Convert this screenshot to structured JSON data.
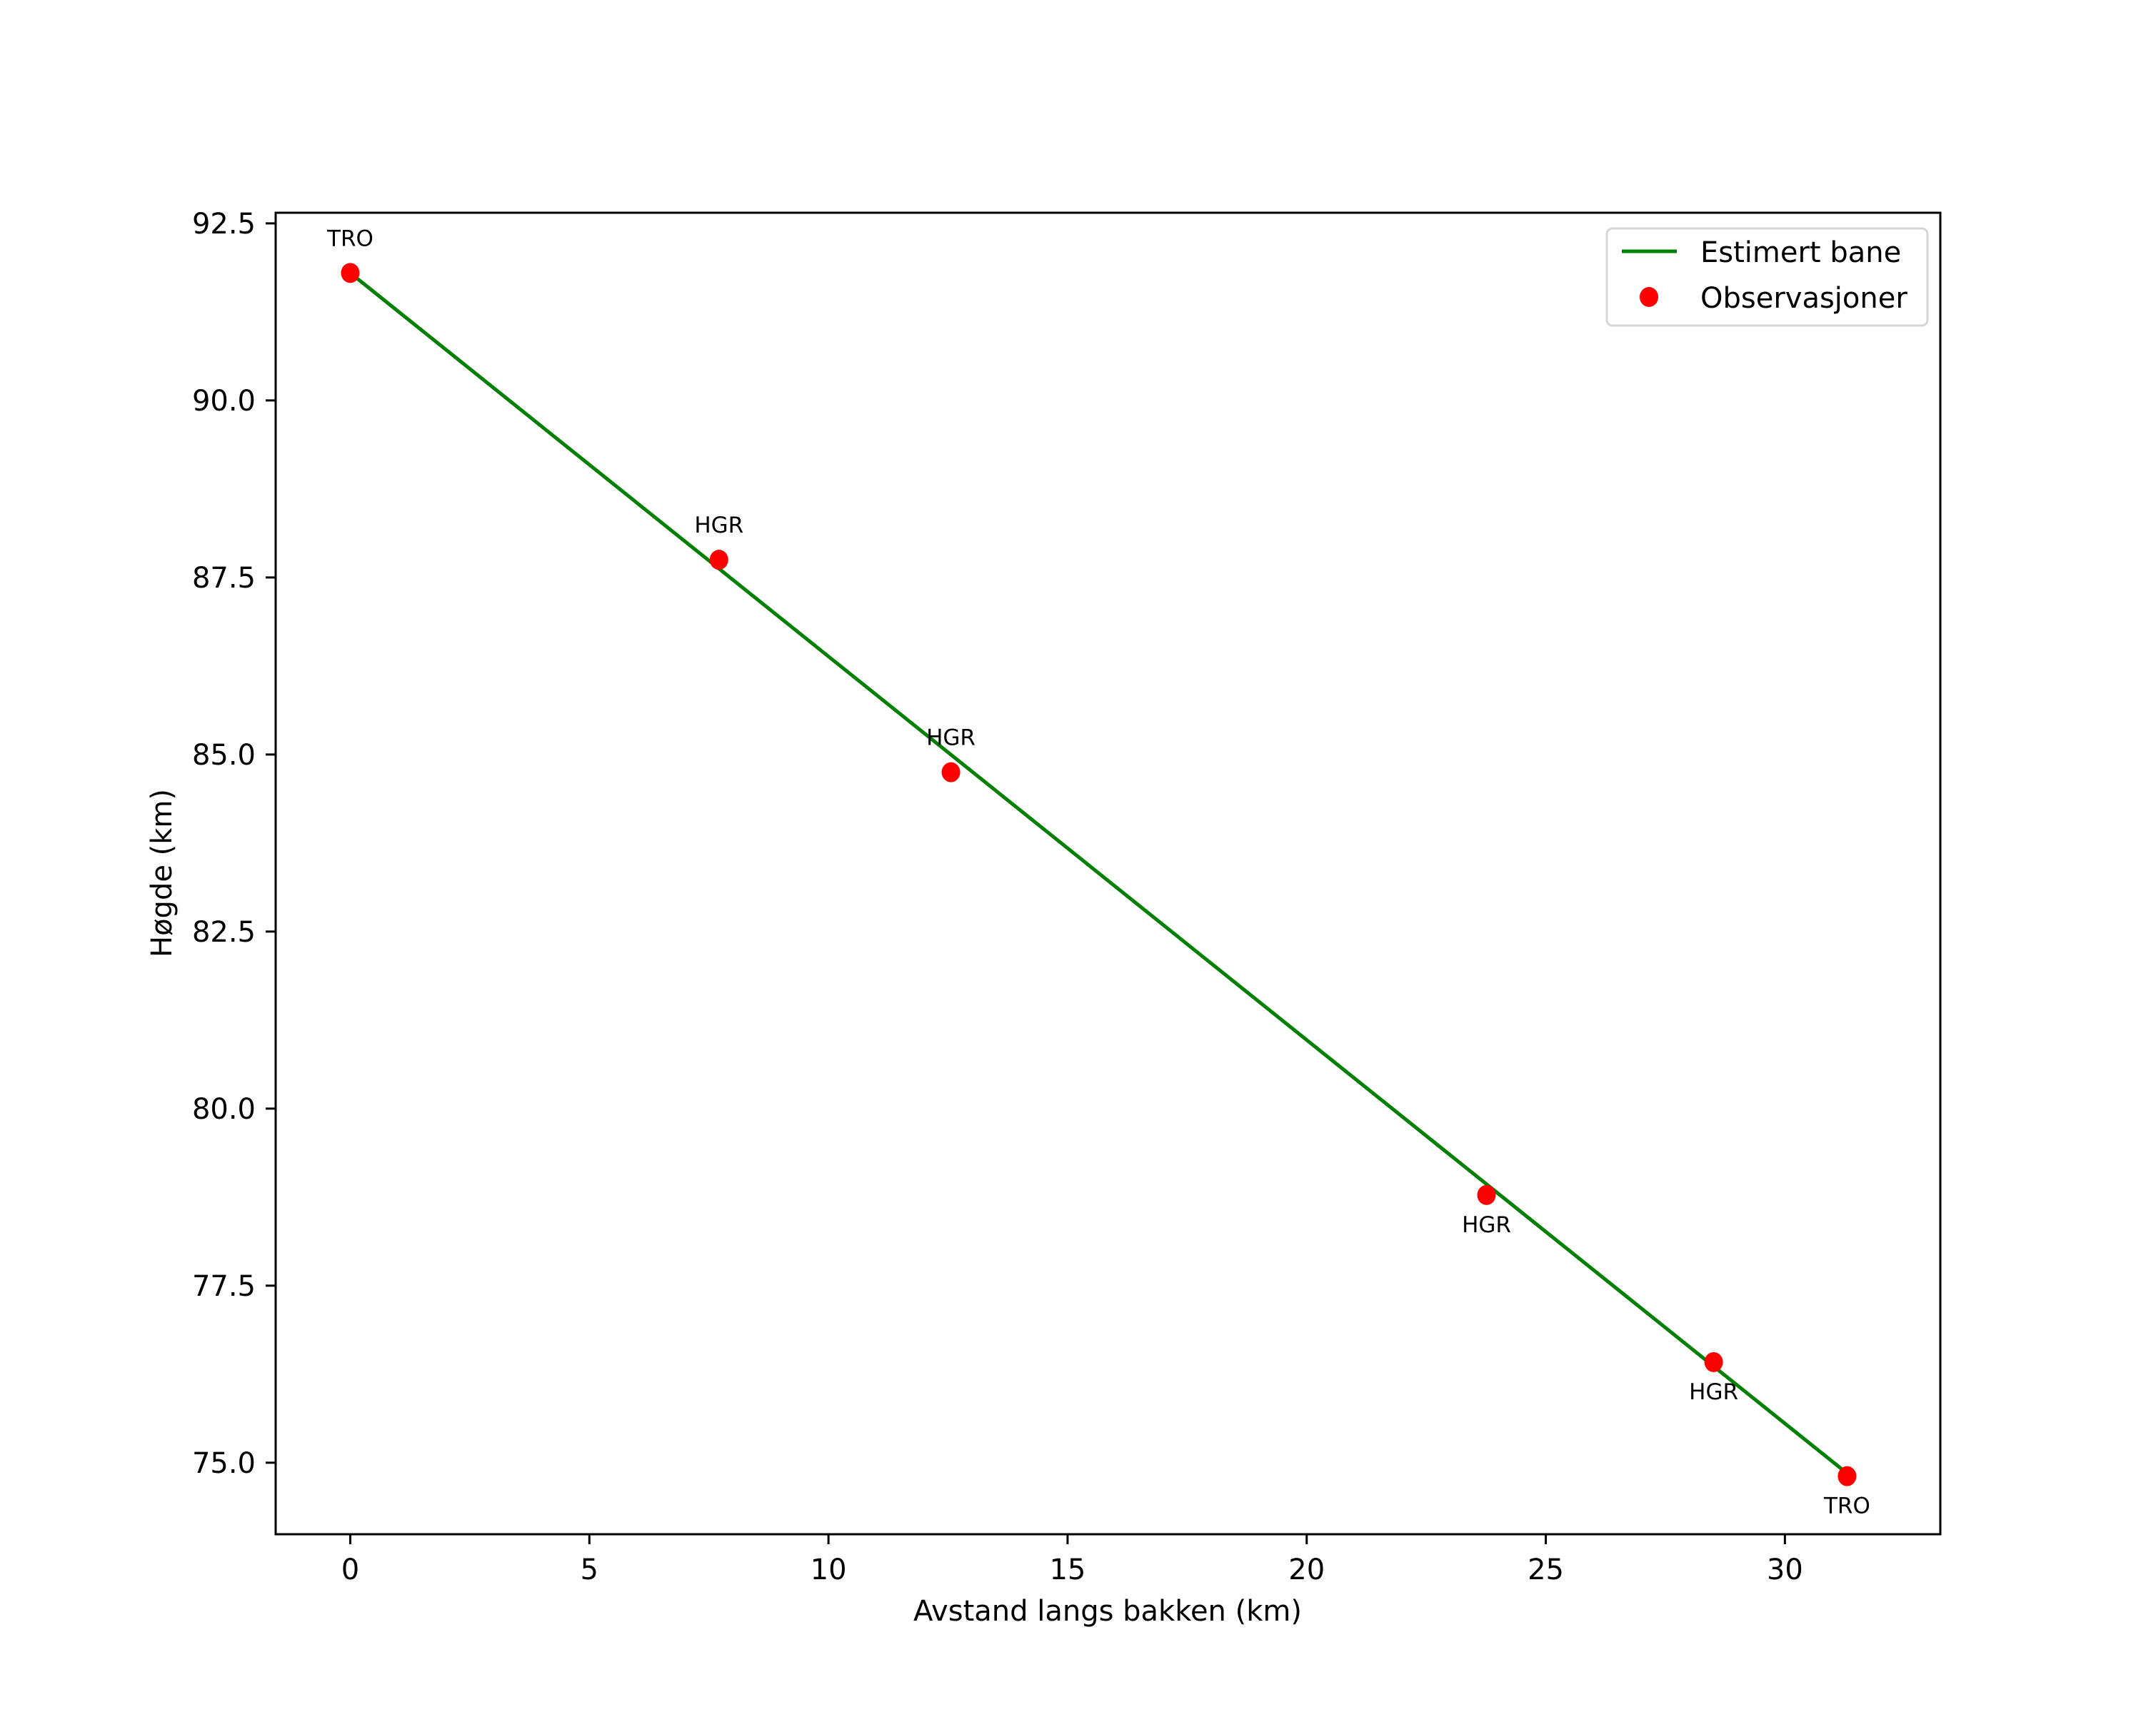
{
  "chart_data": {
    "type": "line",
    "title": "",
    "xlabel": "Avstand langs bakken (km)",
    "ylabel": "Høgde (km)",
    "xlim": [
      -1.56,
      33.25
    ],
    "ylim": [
      73.99,
      92.65
    ],
    "xticks": [
      0,
      5,
      10,
      15,
      20,
      25,
      30
    ],
    "xtick_labels": [
      "0",
      "5",
      "10",
      "15",
      "20",
      "25",
      "30"
    ],
    "yticks": [
      75.0,
      77.5,
      80.0,
      82.5,
      85.0,
      87.5,
      90.0,
      92.5
    ],
    "ytick_labels": [
      "75.0",
      "77.5",
      "80.0",
      "82.5",
      "85.0",
      "87.5",
      "90.0",
      "92.5"
    ],
    "grid": false,
    "legend_position": "upper right",
    "series": [
      {
        "name": "Estimert bane",
        "kind": "line",
        "color": "#008000",
        "x": [
          0.0,
          31.3
        ],
        "y": [
          91.8,
          74.85
        ]
      },
      {
        "name": "Observasjoner",
        "kind": "scatter",
        "color": "#ff0000",
        "x": [
          0.0,
          7.71,
          12.56,
          23.76,
          28.51,
          31.3
        ],
        "y": [
          91.8,
          87.75,
          84.75,
          78.78,
          76.42,
          74.81
        ],
        "labels": [
          "TRO",
          "HGR",
          "HGR",
          "HGR",
          "HGR",
          "TRO"
        ],
        "label_positions": [
          "above",
          "above",
          "above",
          "below",
          "below",
          "below"
        ]
      }
    ],
    "legend": [
      {
        "label": "Estimert bane",
        "marker": "line",
        "color": "#008000"
      },
      {
        "label": "Observasjoner",
        "marker": "circle",
        "color": "#ff0000"
      }
    ]
  }
}
